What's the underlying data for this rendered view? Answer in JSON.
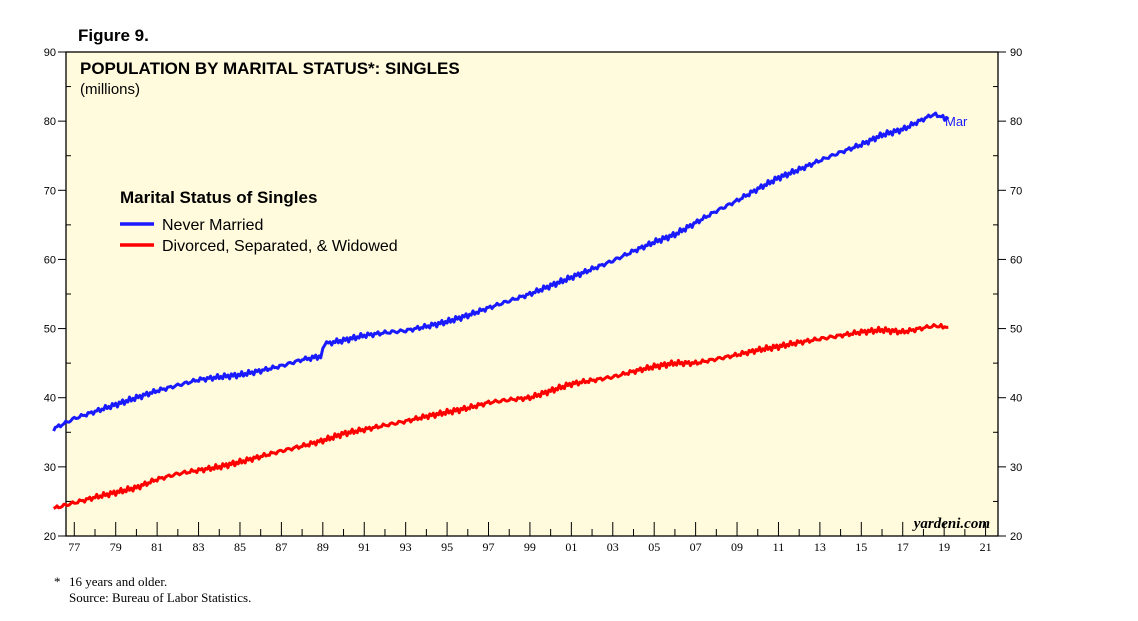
{
  "figure_label": "Figure 9.",
  "colors": {
    "plot_background": "#fffbdc",
    "never_married": "#1a1aff",
    "divorced": "#ff0000",
    "axis": "#000000"
  },
  "chart_data": {
    "type": "line",
    "title": "POPULATION BY MARITAL STATUS*: SINGLES",
    "subtitle": "(millions)",
    "xlabel": "",
    "ylabel": "",
    "ylim": [
      20,
      90
    ],
    "xlim": [
      1976.6,
      2021.6
    ],
    "grid": false,
    "y_ticks": [
      20,
      30,
      40,
      50,
      60,
      70,
      80,
      90
    ],
    "y_tick_labels": [
      "20",
      "30",
      "40",
      "50",
      "60",
      "70",
      "80",
      "90"
    ],
    "x_tick_labels": [
      "77",
      "79",
      "81",
      "83",
      "85",
      "87",
      "89",
      "91",
      "93",
      "95",
      "97",
      "99",
      "01",
      "03",
      "05",
      "07",
      "09",
      "11",
      "13",
      "15",
      "17",
      "19",
      "21"
    ],
    "x_tick_years": [
      1977,
      1979,
      1981,
      1983,
      1985,
      1987,
      1989,
      1991,
      1993,
      1995,
      1997,
      1999,
      2001,
      2003,
      2005,
      2007,
      2009,
      2011,
      2013,
      2015,
      2017,
      2019,
      2021
    ],
    "legend_title": "Marital Status of Singles",
    "legend_position": "upper-left",
    "end_label": "Mar",
    "series": [
      {
        "name": "Never Married",
        "color": "#1a1aff",
        "x": [
          1976.0,
          1977.0,
          1978.0,
          1979.0,
          1980.0,
          1981.0,
          1982.0,
          1983.0,
          1984.0,
          1985.0,
          1986.0,
          1987.0,
          1988.0,
          1988.9,
          1989.1,
          1990.0,
          1991.0,
          1992.0,
          1993.0,
          1994.0,
          1995.0,
          1996.0,
          1997.0,
          1998.0,
          1999.0,
          2000.0,
          2001.0,
          2002.0,
          2003.0,
          2004.0,
          2005.0,
          2006.0,
          2007.0,
          2008.0,
          2009.0,
          2010.0,
          2011.0,
          2012.0,
          2013.0,
          2014.0,
          2015.0,
          2016.0,
          2017.0,
          2018.0,
          2018.5,
          2019.2
        ],
        "y": [
          35.5,
          37.0,
          38.0,
          39.0,
          40.0,
          41.0,
          41.8,
          42.6,
          43.0,
          43.3,
          43.9,
          44.6,
          45.5,
          46.0,
          47.8,
          48.3,
          49.0,
          49.4,
          49.7,
          50.3,
          51.0,
          51.9,
          53.0,
          54.0,
          55.0,
          56.2,
          57.4,
          58.6,
          59.8,
          61.2,
          62.5,
          63.6,
          65.3,
          67.0,
          68.5,
          70.2,
          71.8,
          73.0,
          74.3,
          75.5,
          76.6,
          78.0,
          78.8,
          80.3,
          81.0,
          80.3
        ]
      },
      {
        "name": "Divorced, Separated, & Widowed",
        "color": "#ff0000",
        "x": [
          1976.0,
          1977.0,
          1978.0,
          1979.0,
          1980.0,
          1981.0,
          1982.0,
          1983.0,
          1984.0,
          1985.0,
          1986.0,
          1987.0,
          1988.0,
          1989.0,
          1990.0,
          1991.0,
          1992.0,
          1993.0,
          1994.0,
          1995.0,
          1996.0,
          1997.0,
          1998.0,
          1999.0,
          2000.0,
          2001.0,
          2002.0,
          2003.0,
          2004.0,
          2005.0,
          2006.0,
          2007.0,
          2008.0,
          2009.0,
          2010.0,
          2011.0,
          2012.0,
          2013.0,
          2014.0,
          2015.0,
          2016.0,
          2017.0,
          2018.0,
          2018.5,
          2019.2
        ],
        "y": [
          24.0,
          24.8,
          25.6,
          26.3,
          27.0,
          28.2,
          29.0,
          29.5,
          30.0,
          30.7,
          31.5,
          32.3,
          33.0,
          33.8,
          34.8,
          35.4,
          36.0,
          36.6,
          37.3,
          37.9,
          38.5,
          39.3,
          39.7,
          40.0,
          41.0,
          42.0,
          42.5,
          43.0,
          43.8,
          44.5,
          45.0,
          45.0,
          45.6,
          46.2,
          46.9,
          47.4,
          48.0,
          48.5,
          49.0,
          49.5,
          49.8,
          49.5,
          50.1,
          50.4,
          50.2
        ]
      }
    ],
    "source_mark": "yardeni.com"
  },
  "footnotes": {
    "star": "*",
    "line1": "16 years and older.",
    "line2": "Source: Bureau of Labor Statistics."
  }
}
